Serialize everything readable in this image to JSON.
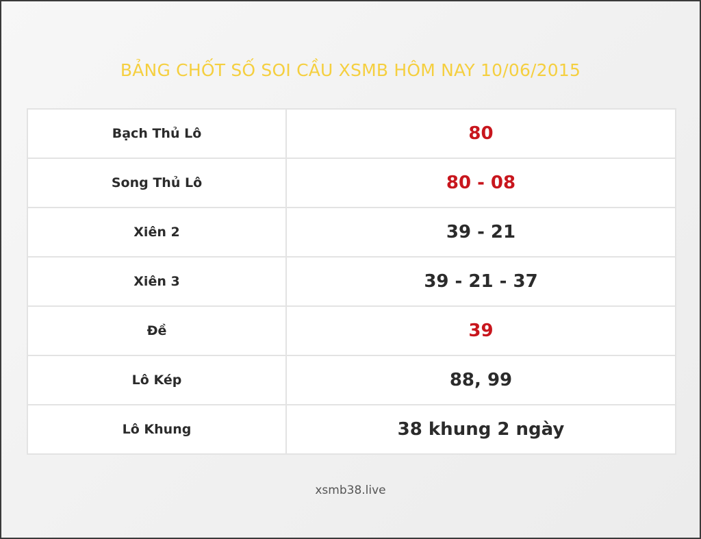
{
  "title": "BẢNG CHỐT SỐ SOI CẦU XSMB HÔM NAY 10/06/2015",
  "colors": {
    "title": "#f5cf3f",
    "highlight": "#c8161d",
    "text": "#2b2b2b"
  },
  "rows": [
    {
      "label": "Bạch Thủ Lô",
      "value": "80",
      "highlight": true
    },
    {
      "label": "Song Thủ Lô",
      "value": "80 - 08",
      "highlight": true
    },
    {
      "label": "Xiên 2",
      "value": "39 - 21",
      "highlight": false
    },
    {
      "label": "Xiên 3",
      "value": "39 - 21 - 37",
      "highlight": false
    },
    {
      "label": "Đề",
      "value": "39",
      "highlight": true
    },
    {
      "label": "Lô Kép",
      "value": "88, 99",
      "highlight": false
    },
    {
      "label": "Lô Khung",
      "value": "38 khung 2 ngày",
      "highlight": false
    }
  ],
  "footer": "xsmb38.live"
}
